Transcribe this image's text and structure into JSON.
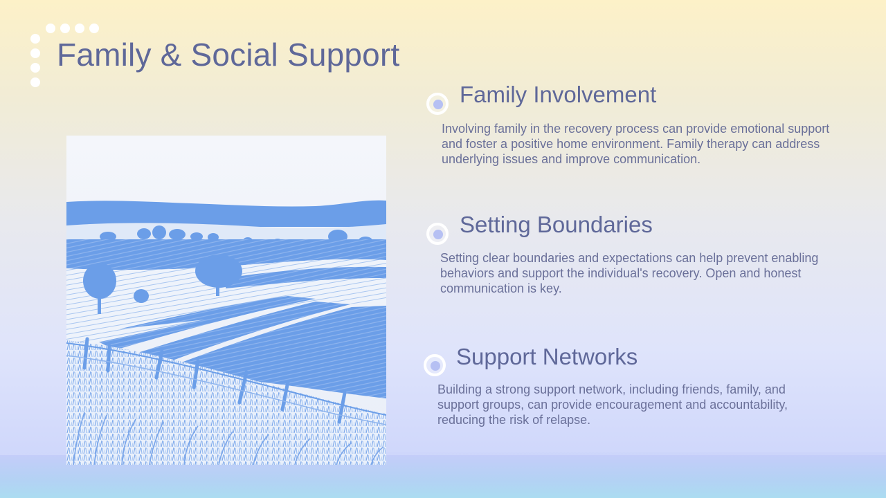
{
  "slide": {
    "title": "Family & Social Support",
    "image_icon": "landscape-painting-icon",
    "colors": {
      "title": "#5f6899",
      "body_text": "#6a7099",
      "marker_fill": "#b6c0f3",
      "painting_blue": "#6b9ee8"
    },
    "sections": [
      {
        "heading": "Family Involvement",
        "body": "Involving family in the recovery process can provide emotional support and foster a positive home environment. Family therapy can address underlying issues and improve communication."
      },
      {
        "heading": "Setting Boundaries",
        "body": "Setting clear boundaries and expectations can help prevent enabling behaviors and support the individual's recovery. Open and honest communication is key."
      },
      {
        "heading": "Support Networks",
        "body": "Building a strong support network, including friends, family, and support groups, can provide encouragement and accountability, reducing the risk of relapse."
      }
    ]
  }
}
